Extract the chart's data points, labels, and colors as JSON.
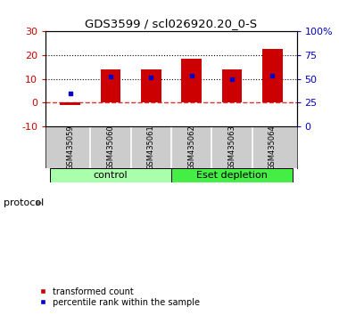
{
  "title": "GDS3599 / scl026920.20_0-S",
  "categories": [
    "GSM435059",
    "GSM435060",
    "GSM435061",
    "GSM435062",
    "GSM435063",
    "GSM435064"
  ],
  "bar_values": [
    -1.0,
    14.0,
    14.0,
    18.5,
    14.0,
    22.5
  ],
  "bar_color": "#cc0000",
  "blue_marker_values": [
    4.0,
    11.0,
    10.5,
    11.5,
    10.0,
    11.5
  ],
  "blue_marker_color": "#0000cc",
  "ylim_left": [
    -10,
    30
  ],
  "ylim_right": [
    0,
    100
  ],
  "yticks_left": [
    -10,
    0,
    10,
    20,
    30
  ],
  "ytick_labels_left": [
    "-10",
    "0",
    "10",
    "20",
    "30"
  ],
  "yticks_right_vals": [
    0,
    25,
    50,
    75,
    100
  ],
  "ytick_labels_right": [
    "0",
    "25",
    "50",
    "75",
    "100%"
  ],
  "hlines_dotted": [
    10,
    20
  ],
  "hline_dashed": 0,
  "group_labels": [
    "control",
    "Eset depletion"
  ],
  "group_ranges": [
    [
      0,
      3
    ],
    [
      3,
      6
    ]
  ],
  "group_color_control": "#aaffaa",
  "group_color_eset": "#44ee44",
  "protocol_label": "protocol",
  "legend_red": "transformed count",
  "legend_blue": "percentile rank within the sample",
  "background_color": "#ffffff",
  "plot_bg_color": "#ffffff",
  "bar_width": 0.5,
  "tick_label_area_color": "#cccccc"
}
